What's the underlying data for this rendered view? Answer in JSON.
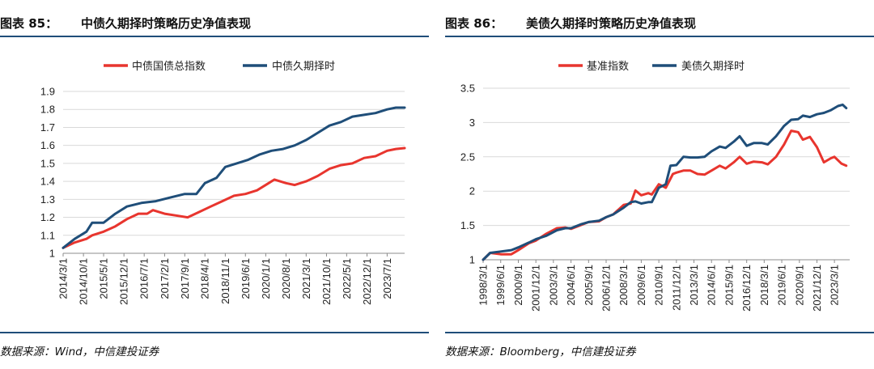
{
  "figures": [
    {
      "number": "图表 85：",
      "title": "中债久期择时策略历史净值表现",
      "source": "数据来源：Wind，中信建投证券"
    },
    {
      "number": "图表 86：",
      "title": "美债久期择时策略历史净值表现",
      "source": "数据来源：Bloomberg，中信建投证券"
    }
  ],
  "colors": {
    "red": "#e8352e",
    "blue": "#1f4e79",
    "grid": "#d9d9d9",
    "rule": "#1f4e79"
  },
  "chart_data": [
    {
      "type": "line",
      "title": "",
      "xlabel": "",
      "ylabel": "",
      "ylim": [
        1,
        1.9
      ],
      "yticks": [
        "1",
        "1.1",
        "1.2",
        "1.3",
        "1.4",
        "1.5",
        "1.6",
        "1.7",
        "1.8",
        "1.9"
      ],
      "grid": true,
      "legend": "top-center",
      "xlim": [
        "2014-03-01",
        "2024-01-01"
      ],
      "x_tick_labels": [
        "2014/3/1",
        "2014/10/1",
        "2015/5/1",
        "2015/12/1",
        "2016/7/1",
        "2017/2/1",
        "2017/9/1",
        "2018/4/1",
        "2018/11/1",
        "2019/6/1",
        "2020/1/1",
        "2020/8/1",
        "2021/3/1",
        "2021/10/1",
        "2022/5/1",
        "2022/12/1",
        "2023/7/1"
      ],
      "series": [
        {
          "name": "中债国债总指数",
          "color": "#e8352e",
          "points": [
            [
              "2014-03-01",
              1.03
            ],
            [
              "2014-07-01",
              1.06
            ],
            [
              "2014-11-01",
              1.08
            ],
            [
              "2015-01-01",
              1.1
            ],
            [
              "2015-05-01",
              1.12
            ],
            [
              "2015-09-01",
              1.15
            ],
            [
              "2016-01-01",
              1.19
            ],
            [
              "2016-05-01",
              1.22
            ],
            [
              "2016-08-01",
              1.22
            ],
            [
              "2016-10-01",
              1.24
            ],
            [
              "2017-02-01",
              1.22
            ],
            [
              "2017-06-01",
              1.21
            ],
            [
              "2017-10-01",
              1.2
            ],
            [
              "2018-02-01",
              1.23
            ],
            [
              "2018-06-01",
              1.26
            ],
            [
              "2018-10-01",
              1.29
            ],
            [
              "2019-02-01",
              1.32
            ],
            [
              "2019-06-01",
              1.33
            ],
            [
              "2019-10-01",
              1.35
            ],
            [
              "2020-02-01",
              1.39
            ],
            [
              "2020-04-01",
              1.41
            ],
            [
              "2020-08-01",
              1.39
            ],
            [
              "2020-11-01",
              1.38
            ],
            [
              "2021-03-01",
              1.4
            ],
            [
              "2021-07-01",
              1.43
            ],
            [
              "2021-11-01",
              1.47
            ],
            [
              "2022-03-01",
              1.49
            ],
            [
              "2022-07-01",
              1.5
            ],
            [
              "2022-11-01",
              1.53
            ],
            [
              "2023-03-01",
              1.54
            ],
            [
              "2023-07-01",
              1.57
            ],
            [
              "2023-10-01",
              1.58
            ],
            [
              "2024-01-01",
              1.585
            ]
          ]
        },
        {
          "name": "中债久期择时",
          "color": "#1f4e79",
          "points": [
            [
              "2014-03-01",
              1.03
            ],
            [
              "2014-07-01",
              1.08
            ],
            [
              "2014-11-01",
              1.12
            ],
            [
              "2015-01-01",
              1.17
            ],
            [
              "2015-05-01",
              1.17
            ],
            [
              "2015-09-01",
              1.22
            ],
            [
              "2016-01-01",
              1.26
            ],
            [
              "2016-06-01",
              1.28
            ],
            [
              "2016-11-01",
              1.29
            ],
            [
              "2017-04-01",
              1.31
            ],
            [
              "2017-09-01",
              1.33
            ],
            [
              "2018-01-01",
              1.33
            ],
            [
              "2018-04-01",
              1.39
            ],
            [
              "2018-08-01",
              1.42
            ],
            [
              "2018-11-01",
              1.48
            ],
            [
              "2019-03-01",
              1.5
            ],
            [
              "2019-07-01",
              1.52
            ],
            [
              "2019-11-01",
              1.55
            ],
            [
              "2020-03-01",
              1.57
            ],
            [
              "2020-07-01",
              1.58
            ],
            [
              "2020-11-01",
              1.6
            ],
            [
              "2021-03-01",
              1.63
            ],
            [
              "2021-07-01",
              1.67
            ],
            [
              "2021-11-01",
              1.71
            ],
            [
              "2022-03-01",
              1.73
            ],
            [
              "2022-07-01",
              1.76
            ],
            [
              "2022-11-01",
              1.77
            ],
            [
              "2023-03-01",
              1.78
            ],
            [
              "2023-07-01",
              1.8
            ],
            [
              "2023-10-01",
              1.81
            ],
            [
              "2024-01-01",
              1.81
            ]
          ]
        }
      ]
    },
    {
      "type": "line",
      "title": "",
      "xlabel": "",
      "ylabel": "",
      "ylim": [
        1,
        3.5
      ],
      "yticks": [
        "1",
        "1.5",
        "2",
        "2.5",
        "3",
        "3.5"
      ],
      "grid": true,
      "legend": "top-center",
      "xlim": [
        "1998-03-01",
        "2024-04-01"
      ],
      "x_tick_labels": [
        "1998/3/1",
        "1999/6/1",
        "2000/9/1",
        "2001/12/1",
        "2003/3/1",
        "2004/6/1",
        "2005/9/1",
        "2006/12/1",
        "2008/3/1",
        "2009/6/1",
        "2010/9/1",
        "2011/12/1",
        "2013/3/1",
        "2014/6/1",
        "2015/9/1",
        "2016/12/1",
        "2018/3/1",
        "2019/6/1",
        "2020/9/1",
        "2021/12/1",
        "2023/3/1"
      ],
      "series": [
        {
          "name": "基准指数",
          "color": "#e8352e",
          "points": [
            [
              "1998-03-01",
              1.0
            ],
            [
              "1998-09-01",
              1.1
            ],
            [
              "1999-06-01",
              1.08
            ],
            [
              "2000-03-01",
              1.08
            ],
            [
              "2000-09-01",
              1.14
            ],
            [
              "2001-06-01",
              1.24
            ],
            [
              "2001-12-01",
              1.28
            ],
            [
              "2002-09-01",
              1.38
            ],
            [
              "2003-06-01",
              1.46
            ],
            [
              "2004-01-01",
              1.47
            ],
            [
              "2004-06-01",
              1.45
            ],
            [
              "2005-03-01",
              1.51
            ],
            [
              "2005-09-01",
              1.55
            ],
            [
              "2006-06-01",
              1.56
            ],
            [
              "2006-12-01",
              1.62
            ],
            [
              "2007-06-01",
              1.66
            ],
            [
              "2008-03-01",
              1.8
            ],
            [
              "2008-09-01",
              1.82
            ],
            [
              "2009-01-01",
              2.01
            ],
            [
              "2009-06-01",
              1.94
            ],
            [
              "2009-12-01",
              1.97
            ],
            [
              "2010-03-01",
              1.95
            ],
            [
              "2010-09-01",
              2.1
            ],
            [
              "2011-03-01",
              2.05
            ],
            [
              "2011-09-01",
              2.25
            ],
            [
              "2011-12-01",
              2.27
            ],
            [
              "2012-06-01",
              2.3
            ],
            [
              "2012-12-01",
              2.3
            ],
            [
              "2013-06-01",
              2.25
            ],
            [
              "2013-12-01",
              2.24
            ],
            [
              "2014-06-01",
              2.3
            ],
            [
              "2015-01-01",
              2.37
            ],
            [
              "2015-06-01",
              2.33
            ],
            [
              "2016-01-01",
              2.42
            ],
            [
              "2016-06-01",
              2.5
            ],
            [
              "2016-12-01",
              2.4
            ],
            [
              "2017-06-01",
              2.43
            ],
            [
              "2018-01-01",
              2.42
            ],
            [
              "2018-06-01",
              2.39
            ],
            [
              "2019-01-01",
              2.5
            ],
            [
              "2019-08-01",
              2.68
            ],
            [
              "2020-02-01",
              2.88
            ],
            [
              "2020-08-01",
              2.86
            ],
            [
              "2020-12-01",
              2.75
            ],
            [
              "2021-06-01",
              2.79
            ],
            [
              "2021-12-01",
              2.64
            ],
            [
              "2022-06-01",
              2.42
            ],
            [
              "2022-12-01",
              2.48
            ],
            [
              "2023-03-01",
              2.5
            ],
            [
              "2023-09-01",
              2.4
            ],
            [
              "2024-01-01",
              2.37
            ]
          ]
        },
        {
          "name": "美债久期择时",
          "color": "#1f4e79",
          "points": [
            [
              "1998-03-01",
              1.0
            ],
            [
              "1998-09-01",
              1.1
            ],
            [
              "1999-06-01",
              1.12
            ],
            [
              "2000-03-01",
              1.14
            ],
            [
              "2000-09-01",
              1.18
            ],
            [
              "2001-06-01",
              1.25
            ],
            [
              "2001-12-01",
              1.3
            ],
            [
              "2002-09-01",
              1.35
            ],
            [
              "2003-06-01",
              1.43
            ],
            [
              "2004-01-01",
              1.46
            ],
            [
              "2004-06-01",
              1.46
            ],
            [
              "2005-03-01",
              1.52
            ],
            [
              "2005-09-01",
              1.55
            ],
            [
              "2006-06-01",
              1.57
            ],
            [
              "2006-12-01",
              1.62
            ],
            [
              "2007-06-01",
              1.66
            ],
            [
              "2008-03-01",
              1.76
            ],
            [
              "2008-09-01",
              1.84
            ],
            [
              "2009-01-01",
              1.85
            ],
            [
              "2009-06-01",
              1.82
            ],
            [
              "2009-12-01",
              1.84
            ],
            [
              "2010-03-01",
              1.84
            ],
            [
              "2010-09-01",
              2.05
            ],
            [
              "2011-03-01",
              2.1
            ],
            [
              "2011-07-01",
              2.37
            ],
            [
              "2011-12-01",
              2.38
            ],
            [
              "2012-06-01",
              2.5
            ],
            [
              "2012-12-01",
              2.49
            ],
            [
              "2013-06-01",
              2.49
            ],
            [
              "2013-12-01",
              2.5
            ],
            [
              "2014-06-01",
              2.58
            ],
            [
              "2015-01-01",
              2.65
            ],
            [
              "2015-06-01",
              2.63
            ],
            [
              "2016-01-01",
              2.72
            ],
            [
              "2016-06-01",
              2.8
            ],
            [
              "2016-12-01",
              2.66
            ],
            [
              "2017-06-01",
              2.7
            ],
            [
              "2018-01-01",
              2.7
            ],
            [
              "2018-06-01",
              2.68
            ],
            [
              "2019-01-01",
              2.8
            ],
            [
              "2019-08-01",
              2.95
            ],
            [
              "2020-02-01",
              3.04
            ],
            [
              "2020-08-01",
              3.05
            ],
            [
              "2020-12-01",
              3.1
            ],
            [
              "2021-06-01",
              3.08
            ],
            [
              "2021-12-01",
              3.12
            ],
            [
              "2022-06-01",
              3.14
            ],
            [
              "2022-12-01",
              3.18
            ],
            [
              "2023-06-01",
              3.24
            ],
            [
              "2023-10-01",
              3.26
            ],
            [
              "2024-01-01",
              3.21
            ]
          ]
        }
      ]
    }
  ]
}
